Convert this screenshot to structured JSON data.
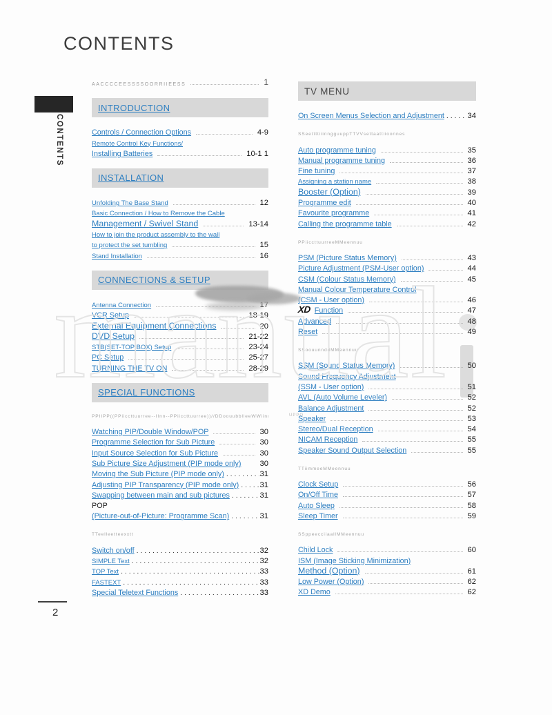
{
  "page": {
    "title": "CONTENTS",
    "sidebar_label": "CONTENTS",
    "page_number": "2",
    "watermark": "manual",
    "artifact_text": "UPPO"
  },
  "colors": {
    "link_blue": "#2e7fc1",
    "header_bar": "#d8d8d8",
    "page_background": "#fdfdfd",
    "subheader_gray": "#a5a5a5"
  },
  "accessories_row": {
    "label": "AACCCCEESSSSOORRIIEESS",
    "page": "1"
  },
  "left_sections": [
    {
      "header": "INTRODUCTION",
      "header_link": true,
      "groups": [
        {
          "subheader": "",
          "items": [
            {
              "label": "Controls / Connection Options",
              "page": "4-9",
              "leader": "dotline",
              "size": "m",
              "link": true
            },
            {
              "label": "Remote Control Key Functions/",
              "page": "",
              "leader": "none",
              "size": "s",
              "link": true
            },
            {
              "label": "Installing Batteries",
              "page": "10-1 1",
              "leader": "dotline",
              "size": "m",
              "link": true
            }
          ]
        }
      ]
    },
    {
      "header": "INSTALLATION",
      "header_link": true,
      "groups": [
        {
          "subheader": "",
          "items": [
            {
              "label": "Unfolding The Base Stand",
              "page": "12",
              "leader": "dotline",
              "size": "s",
              "link": true
            },
            {
              "label": "Basic Connection / How to Remove the Cable",
              "page": "",
              "leader": "none",
              "size": "s",
              "link": true
            },
            {
              "label": "Management / Swivel Stand",
              "page": "13-14",
              "leader": "dotline",
              "size": "l",
              "link": true
            },
            {
              "label": "How to join the product assembly to the wall",
              "page": "",
              "leader": "none",
              "size": "s",
              "link": true
            },
            {
              "label": "to protect the set tumbling",
              "page": "15",
              "leader": "dotline",
              "size": "s",
              "link": true
            },
            {
              "label": "Stand Installation",
              "page": "16",
              "leader": "dotline",
              "size": "s",
              "link": true
            }
          ]
        }
      ]
    },
    {
      "header": "CONNECTIONS & SETUP",
      "header_link": true,
      "groups": [
        {
          "subheader": "",
          "items": [
            {
              "label": "Antenna Connection",
              "page": "17",
              "leader": "dotline",
              "size": "s",
              "link": true
            },
            {
              "label": "VCR Setup",
              "page": "18-19",
              "leader": "dotline",
              "size": "m",
              "link": true
            },
            {
              "label": "External Equipment Connections",
              "page": "20",
              "leader": "dotline",
              "size": "l",
              "link": true
            },
            {
              "label": "DVD Setup",
              "page": "21-22",
              "leader": "dotline",
              "size": "l",
              "link": true
            },
            {
              "label": "STB(SET-TOP BOX) Setup",
              "page": "23-24",
              "leader": "dotline",
              "size": "s",
              "link": true
            },
            {
              "label": "PC Setup",
              "page": "25-27",
              "leader": "dotline",
              "size": "m",
              "link": true
            },
            {
              "label": "TURNING THE TV ON",
              "page": "28-29",
              "leader": "dotline",
              "size": "m",
              "link": true
            }
          ]
        }
      ]
    },
    {
      "header": "SPECIAL FUNCTIONS",
      "header_link": true,
      "groups": [
        {
          "subheader": "PPIIPP((PPiiccttuurree--IInn--PPiiccttuurree))//DDoouubblleeWWiinnddoowwi",
          "items": [
            {
              "label": "Watching PIP/Double Window/POP",
              "page": "30",
              "leader": "dotline",
              "size": "m",
              "link": true
            },
            {
              "label": "Programme Selection for Sub Picture",
              "page": "30",
              "leader": "dotline",
              "size": "m",
              "link": true
            },
            {
              "label": "Input Source Selection for Sub Picture",
              "page": "30",
              "leader": "dotline",
              "size": "m",
              "link": true
            },
            {
              "label": "Sub Picture Size Adjustment (PIP mode only)",
              "page": "30",
              "leader": "none",
              "size": "m",
              "link": true
            },
            {
              "label": "Moving the Sub Picture (PIP mode only)",
              "page": "31",
              "leader": "dots",
              "size": "m",
              "link": true
            },
            {
              "label": "Adjusting PIP Transparency (PIP mode only)",
              "page": "31",
              "leader": "dots",
              "size": "m",
              "link": true
            },
            {
              "label": "Swapping between main and sub pictures",
              "page": "31",
              "leader": "dots",
              "size": "m",
              "link": true
            },
            {
              "label": "POP",
              "page": "",
              "leader": "none",
              "size": "m",
              "link": false
            },
            {
              "label": "(Picture-out-of-Picture: Programme Scan)",
              "page": "31",
              "leader": "dots",
              "size": "m",
              "link": true
            }
          ]
        },
        {
          "subheader": "TTeelleetteexxtt",
          "items": [
            {
              "label": "Switch on/off",
              "page": "32",
              "leader": "dots",
              "size": "m",
              "link": true
            },
            {
              "label": "SIMPLE Text",
              "page": "32",
              "leader": "dots",
              "size": "s",
              "link": true
            },
            {
              "label": "TOP Text",
              "page": "33",
              "leader": "dots",
              "size": "s",
              "link": true
            },
            {
              "label": "FASTEXT",
              "page": "33",
              "leader": "dots",
              "size": "s",
              "link": true
            },
            {
              "label": "Special Teletext Functions",
              "page": "33",
              "leader": "dots",
              "size": "m",
              "link": true
            }
          ]
        }
      ]
    }
  ],
  "right_sections": [
    {
      "header": "TV MENU",
      "header_link": false,
      "groups": [
        {
          "subheader": "",
          "items": [
            {
              "label": "On Screen Menus Selection and Adjustment",
              "page": "34",
              "leader": "dots",
              "size": "m",
              "link": true
            }
          ]
        },
        {
          "subheader": "SSeettttiiinngguuppTTVVsettaattiioonnes",
          "items": [
            {
              "label": "Auto programme tuning",
              "page": "35",
              "leader": "dotline",
              "size": "m",
              "link": true
            },
            {
              "label": "Manual programme tuning",
              "page": "36",
              "leader": "dotline",
              "size": "m",
              "link": true
            },
            {
              "label": "Fine tuning",
              "page": "37",
              "leader": "dotline",
              "size": "m",
              "link": true
            },
            {
              "label": "Assigning a station name",
              "page": "38",
              "leader": "dotline",
              "size": "s",
              "link": true
            },
            {
              "label": "Booster (Option)",
              "page": "39",
              "leader": "dotline",
              "size": "l",
              "link": true
            },
            {
              "label": "Programme edit",
              "page": "40",
              "leader": "dotline",
              "size": "m",
              "link": true
            },
            {
              "label": "Favourite programme",
              "page": "41",
              "leader": "dotline",
              "size": "m",
              "link": true
            },
            {
              "label": "Calling the programme table",
              "page": "42",
              "leader": "dotline",
              "size": "m",
              "link": true
            }
          ]
        },
        {
          "subheader": "PPiiccttuurreeMMeennuu",
          "items": [
            {
              "label": "PSM (Picture Status Memory)",
              "page": "43",
              "leader": "dotline",
              "size": "m",
              "link": true
            },
            {
              "label": "Picture Adjustment (PSM-User option)",
              "page": "44",
              "leader": "dotline",
              "size": "m",
              "link": true
            },
            {
              "label": "CSM (Colour Status Memory)",
              "page": "45",
              "leader": "dotline",
              "size": "m",
              "link": true
            },
            {
              "label": "Manual Colour Temperature Control",
              "page": "",
              "leader": "none",
              "size": "m",
              "link": true
            },
            {
              "label": "(CSM - User option)",
              "page": "46",
              "leader": "dotline",
              "size": "m",
              "link": true
            },
            {
              "label": "Function",
              "page": "47",
              "leader": "dotline",
              "size": "m",
              "link": true,
              "icon": "xd-logo",
              "icon_text": "XD"
            },
            {
              "label": "Advanced",
              "page": "48",
              "leader": "dotline",
              "size": "m",
              "link": true
            },
            {
              "label": "Reset",
              "page": "49",
              "leader": "dotline",
              "size": "m",
              "link": true
            }
          ]
        },
        {
          "subheader": "SSoouunnddMMeennuu",
          "items": [
            {
              "label": "SSM (Sound Status Memory)",
              "page": "50",
              "leader": "dotline",
              "size": "m",
              "link": true
            },
            {
              "label": "Sound Frequency Adjustment",
              "page": "",
              "leader": "none",
              "size": "m",
              "link": true
            },
            {
              "label": "(SSM - User option)",
              "page": "51",
              "leader": "dotline",
              "size": "m",
              "link": true
            },
            {
              "label": "AVL (Auto Volume Leveler)",
              "page": "52",
              "leader": "dotline",
              "size": "m",
              "link": true
            },
            {
              "label": "Balance Adjustment",
              "page": "52",
              "leader": "dotline",
              "size": "m",
              "link": true
            },
            {
              "label": "Speaker",
              "page": "53",
              "leader": "dotline",
              "size": "m",
              "link": true
            },
            {
              "label": "Stereo/Dual Reception",
              "page": "54",
              "leader": "dotline",
              "size": "m",
              "link": true
            },
            {
              "label": "NICAM Reception",
              "page": "55",
              "leader": "dotline",
              "size": "m",
              "link": true
            },
            {
              "label": "Speaker Sound Output Selection",
              "page": "55",
              "leader": "dotline",
              "size": "m",
              "link": true
            }
          ]
        },
        {
          "subheader": "TTiimmeeMMeennuu",
          "items": [
            {
              "label": "Clock Setup",
              "page": "56",
              "leader": "dotline",
              "size": "m",
              "link": true
            },
            {
              "label": "On/Off Time",
              "page": "57",
              "leader": "dotline",
              "size": "m",
              "link": true
            },
            {
              "label": "Auto Sleep",
              "page": "58",
              "leader": "dotline",
              "size": "m",
              "link": true
            },
            {
              "label": "Sleep Timer",
              "page": "59",
              "leader": "dotline",
              "size": "m",
              "link": true
            }
          ]
        },
        {
          "subheader": "SSppeecciiaallMMeennuu",
          "items": [
            {
              "label": "Child Lock",
              "page": "60",
              "leader": "dotline",
              "size": "m",
              "link": true
            },
            {
              "label": "ISM (Image Sticking Minimization)",
              "page": "",
              "leader": "none",
              "size": "m",
              "link": true
            },
            {
              "label": "Method (Option)",
              "page": "61",
              "leader": "dotline",
              "size": "l",
              "link": true
            },
            {
              "label": "Low Power (Option)",
              "page": "62",
              "leader": "dotline",
              "size": "m",
              "link": true
            },
            {
              "label": "XD Demo",
              "page": "62",
              "leader": "dotline",
              "size": "m",
              "link": true
            }
          ]
        }
      ]
    }
  ]
}
